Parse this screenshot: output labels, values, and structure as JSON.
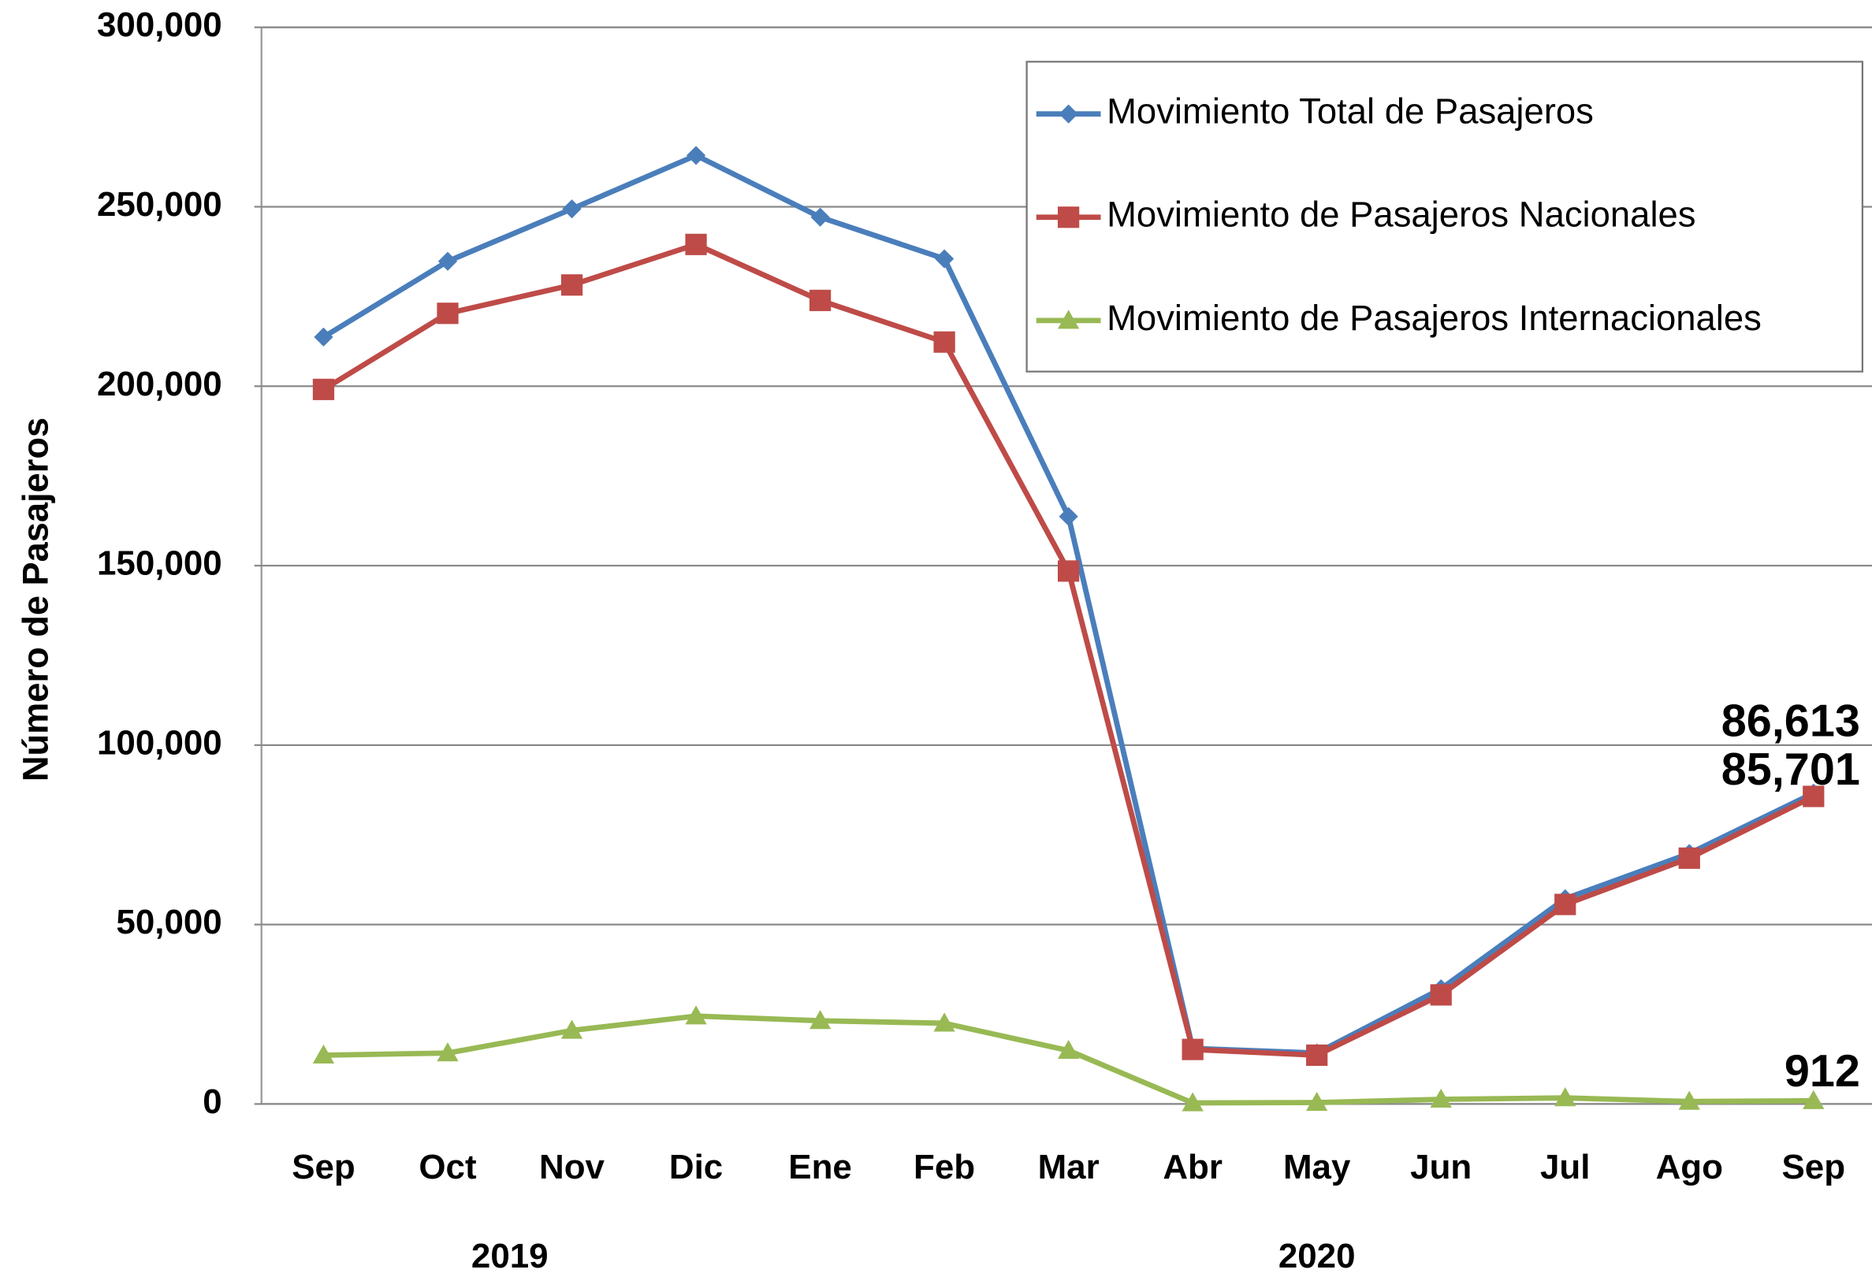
{
  "chart_data": {
    "type": "line",
    "y_label": "Número de Pasajeros",
    "categories": [
      "Sep",
      "Oct",
      "Nov",
      "Dic",
      "Ene",
      "Feb",
      "Mar",
      "Abr",
      "May",
      "Jun",
      "Jul",
      "Ago",
      "Sep"
    ],
    "groups": [
      {
        "label": "2019",
        "start": 0,
        "end": 3
      },
      {
        "label": "2020",
        "start": 4,
        "end": 12
      }
    ],
    "series": [
      {
        "name": "Movimiento Total de Pasajeros",
        "color": "#4a7ebb",
        "marker": "diamond",
        "values": [
          213700,
          234800,
          249400,
          264300,
          247100,
          235500,
          163700,
          15500,
          14200,
          32100,
          57200,
          69800,
          86613
        ],
        "value_labels": [
          null,
          null,
          null,
          null,
          null,
          null,
          null,
          null,
          null,
          null,
          null,
          null,
          "86,613"
        ]
      },
      {
        "name": "Movimiento de Pasajeros Nacionales",
        "color": "#be4b48",
        "marker": "square",
        "values": [
          199100,
          220300,
          228200,
          239500,
          223900,
          212300,
          148500,
          15200,
          13600,
          30400,
          55600,
          68500,
          85701
        ],
        "value_labels": [
          null,
          null,
          null,
          null,
          null,
          null,
          null,
          null,
          null,
          null,
          null,
          null,
          "85,701"
        ]
      },
      {
        "name": "Movimiento de Pasajeros Internacionales",
        "color": "#98b954",
        "marker": "triangle",
        "values": [
          13600,
          14200,
          20500,
          24500,
          23200,
          22500,
          14900,
          300,
          400,
          1300,
          1700,
          700,
          912
        ],
        "value_labels": [
          null,
          null,
          null,
          null,
          null,
          null,
          null,
          null,
          null,
          null,
          null,
          null,
          "912"
        ]
      }
    ],
    "ylim": [
      0,
      300000
    ],
    "yticks": [
      0,
      {
        "value": 50000,
        "label": "50,000"
      },
      {
        "value": 100000,
        "label": "100,000"
      },
      {
        "value": 150000,
        "label": "150,000"
      },
      {
        "value": 200000,
        "label": "200,000"
      },
      {
        "value": 250000,
        "label": "250,000"
      },
      {
        "value": 300000,
        "label": "300,000"
      }
    ],
    "grid": true,
    "legend": "top-right"
  }
}
